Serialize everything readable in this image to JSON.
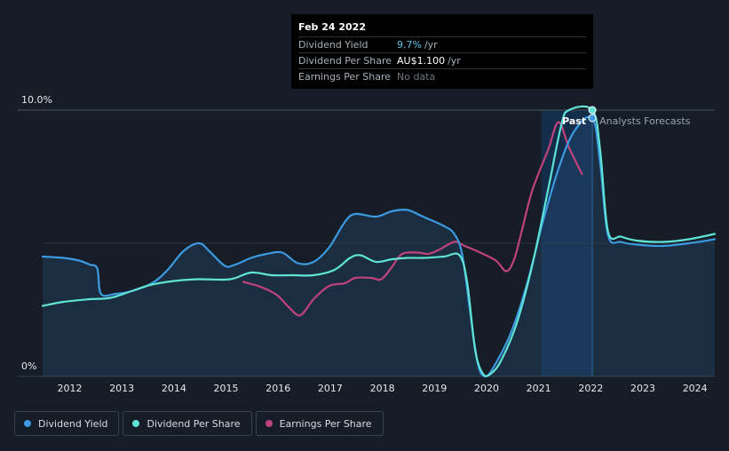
{
  "colors": {
    "dividend_yield": "#3b9ae0",
    "dividend_per_share": "#5fe3d6",
    "earnings_per_share": "#c0427e",
    "background": "#161d26",
    "forecast_band": "#14304f"
  },
  "tooltip": {
    "date": "Feb 24 2022",
    "rows": [
      {
        "label": "Dividend Yield",
        "value": "9.7%",
        "unit": "/yr"
      },
      {
        "label": "Dividend Per Share",
        "value": "AU$1.100",
        "unit": "/yr"
      },
      {
        "label": "Earnings Per Share",
        "value": "No data",
        "unit": ""
      }
    ]
  },
  "legend": {
    "items": [
      {
        "label": "Dividend Yield",
        "icon": "dot-icon"
      },
      {
        "label": "Dividend Per Share",
        "icon": "dot-icon"
      },
      {
        "label": "Earnings Per Share",
        "icon": "dot-icon"
      }
    ]
  },
  "chart_data": {
    "type": "line",
    "title": "",
    "xlabel": "",
    "ylabel": "",
    "x_ticks": [
      "2012",
      "2013",
      "2014",
      "2015",
      "2016",
      "2017",
      "2018",
      "2019",
      "2020",
      "2021",
      "2022",
      "2023",
      "2024"
    ],
    "y_tick_labels": [
      "10.0%",
      "0%"
    ],
    "xlim": [
      2011.6,
      2024.5
    ],
    "ylim": [
      0,
      10
    ],
    "past_label": "Past",
    "forecast_label": "Analysts Forecasts",
    "forecast_start": 2022.15,
    "highlight_band": [
      2021.17,
      2022.15
    ],
    "series": [
      {
        "name": "Dividend Yield",
        "key": "dividend_yield",
        "note": "percent",
        "points": [
          [
            2011.6,
            4.5
          ],
          [
            2012.0,
            4.45
          ],
          [
            2012.3,
            4.35
          ],
          [
            2012.5,
            4.2
          ],
          [
            2012.65,
            4.05
          ],
          [
            2012.72,
            3.1
          ],
          [
            2013.0,
            3.1
          ],
          [
            2013.3,
            3.2
          ],
          [
            2013.7,
            3.5
          ],
          [
            2014.0,
            4.0
          ],
          [
            2014.3,
            4.7
          ],
          [
            2014.6,
            5.0
          ],
          [
            2014.8,
            4.7
          ],
          [
            2015.1,
            4.15
          ],
          [
            2015.3,
            4.2
          ],
          [
            2015.6,
            4.45
          ],
          [
            2015.9,
            4.6
          ],
          [
            2016.2,
            4.65
          ],
          [
            2016.5,
            4.25
          ],
          [
            2016.8,
            4.3
          ],
          [
            2017.1,
            4.85
          ],
          [
            2017.4,
            5.8
          ],
          [
            2017.6,
            6.1
          ],
          [
            2018.0,
            6.0
          ],
          [
            2018.3,
            6.2
          ],
          [
            2018.6,
            6.25
          ],
          [
            2018.9,
            6.0
          ],
          [
            2019.3,
            5.65
          ],
          [
            2019.5,
            5.35
          ],
          [
            2019.65,
            4.6
          ],
          [
            2019.8,
            2.5
          ],
          [
            2019.95,
            0.5
          ],
          [
            2020.1,
            0.0
          ],
          [
            2020.3,
            0.5
          ],
          [
            2020.6,
            1.7
          ],
          [
            2020.9,
            3.5
          ],
          [
            2021.2,
            5.8
          ],
          [
            2021.5,
            7.8
          ],
          [
            2021.8,
            9.2
          ],
          [
            2022.15,
            9.7
          ],
          [
            2022.3,
            8.0
          ],
          [
            2022.45,
            5.3
          ],
          [
            2022.7,
            5.05
          ],
          [
            2023.0,
            4.95
          ],
          [
            2023.5,
            4.9
          ],
          [
            2024.0,
            5.0
          ],
          [
            2024.5,
            5.15
          ]
        ]
      },
      {
        "name": "Dividend Per Share",
        "key": "dividend_per_share",
        "note": "AU$ per share (scaled to axis)",
        "points": [
          [
            2011.6,
            2.65
          ],
          [
            2012.0,
            2.8
          ],
          [
            2012.5,
            2.9
          ],
          [
            2012.9,
            2.95
          ],
          [
            2013.3,
            3.2
          ],
          [
            2013.7,
            3.45
          ],
          [
            2014.2,
            3.6
          ],
          [
            2014.6,
            3.65
          ],
          [
            2015.2,
            3.65
          ],
          [
            2015.6,
            3.9
          ],
          [
            2016.0,
            3.8
          ],
          [
            2016.4,
            3.8
          ],
          [
            2016.8,
            3.8
          ],
          [
            2017.2,
            4.0
          ],
          [
            2017.5,
            4.45
          ],
          [
            2017.7,
            4.55
          ],
          [
            2018.0,
            4.3
          ],
          [
            2018.3,
            4.4
          ],
          [
            2018.6,
            4.45
          ],
          [
            2018.9,
            4.45
          ],
          [
            2019.3,
            4.5
          ],
          [
            2019.6,
            4.55
          ],
          [
            2019.75,
            3.5
          ],
          [
            2019.9,
            1.0
          ],
          [
            2020.05,
            0.1
          ],
          [
            2020.2,
            0.1
          ],
          [
            2020.4,
            0.6
          ],
          [
            2020.7,
            2.0
          ],
          [
            2021.0,
            4.2
          ],
          [
            2021.3,
            7.0
          ],
          [
            2021.55,
            9.4
          ],
          [
            2021.7,
            10.0
          ],
          [
            2022.15,
            10.0
          ],
          [
            2022.3,
            8.5
          ],
          [
            2022.45,
            5.45
          ],
          [
            2022.7,
            5.25
          ],
          [
            2023.0,
            5.1
          ],
          [
            2023.5,
            5.05
          ],
          [
            2024.0,
            5.15
          ],
          [
            2024.5,
            5.35
          ]
        ]
      },
      {
        "name": "Earnings Per Share",
        "key": "earnings_per_share",
        "note": "AU$ per share (scaled to axis)",
        "points": [
          [
            2015.45,
            3.55
          ],
          [
            2015.8,
            3.35
          ],
          [
            2016.1,
            3.05
          ],
          [
            2016.35,
            2.55
          ],
          [
            2016.55,
            2.3
          ],
          [
            2016.8,
            2.9
          ],
          [
            2017.1,
            3.4
          ],
          [
            2017.4,
            3.5
          ],
          [
            2017.6,
            3.7
          ],
          [
            2017.9,
            3.7
          ],
          [
            2018.1,
            3.65
          ],
          [
            2018.3,
            4.1
          ],
          [
            2018.5,
            4.6
          ],
          [
            2018.8,
            4.65
          ],
          [
            2019.0,
            4.6
          ],
          [
            2019.2,
            4.75
          ],
          [
            2019.5,
            5.05
          ],
          [
            2019.7,
            4.9
          ],
          [
            2020.0,
            4.65
          ],
          [
            2020.3,
            4.35
          ],
          [
            2020.5,
            3.95
          ],
          [
            2020.65,
            4.4
          ],
          [
            2020.8,
            5.5
          ],
          [
            2021.0,
            7.0
          ],
          [
            2021.3,
            8.5
          ],
          [
            2021.5,
            9.55
          ],
          [
            2021.7,
            8.6
          ],
          [
            2021.95,
            7.6
          ]
        ]
      }
    ]
  }
}
